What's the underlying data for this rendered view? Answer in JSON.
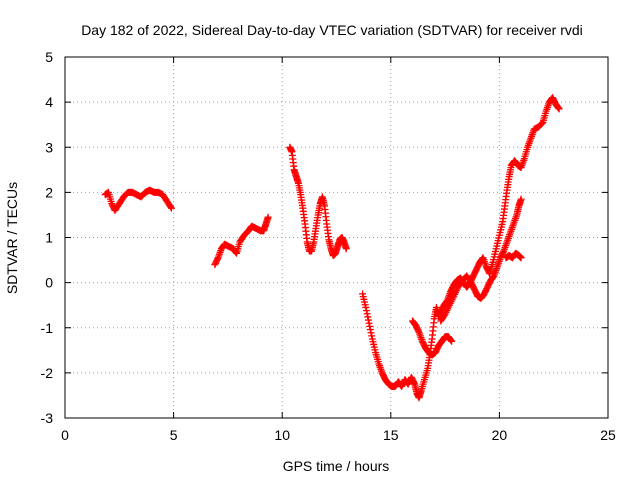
{
  "chart_data": {
    "type": "scatter",
    "title": "Day 182 of 2022, Sidereal Day-to-day VTEC variation (SDTVAR) for receiver rvdi",
    "xlabel": "GPS time / hours",
    "ylabel": "SDTVAR / TECUs",
    "xlim": [
      0,
      25
    ],
    "ylim": [
      -3,
      5
    ],
    "x_ticks": [
      "0",
      "5",
      "10",
      "15",
      "20",
      "25"
    ],
    "y_ticks": [
      "-3",
      "-2",
      "-1",
      "0",
      "1",
      "2",
      "3",
      "4",
      "5"
    ],
    "grid": true,
    "marker": "+",
    "color": "#ff0000",
    "series": [
      {
        "points": [
          [
            1.85,
            1.95
          ],
          [
            2.0,
            2.0
          ],
          [
            2.15,
            1.75
          ],
          [
            2.3,
            1.6
          ],
          [
            2.5,
            1.75
          ],
          [
            2.7,
            1.9
          ],
          [
            2.9,
            2.0
          ],
          [
            3.1,
            2.0
          ],
          [
            3.3,
            1.95
          ],
          [
            3.5,
            1.9
          ],
          [
            3.7,
            2.0
          ],
          [
            3.9,
            2.05
          ],
          [
            4.1,
            2.0
          ],
          [
            4.3,
            2.0
          ],
          [
            4.5,
            1.95
          ],
          [
            4.7,
            1.8
          ],
          [
            4.9,
            1.65
          ]
        ]
      },
      {
        "points": [
          [
            6.9,
            0.4
          ],
          [
            7.05,
            0.55
          ],
          [
            7.2,
            0.75
          ],
          [
            7.35,
            0.85
          ],
          [
            7.55,
            0.8
          ],
          [
            7.75,
            0.75
          ],
          [
            7.9,
            0.65
          ],
          [
            8.05,
            0.9
          ],
          [
            8.25,
            1.05
          ],
          [
            8.45,
            1.15
          ],
          [
            8.6,
            1.25
          ],
          [
            8.8,
            1.2
          ],
          [
            9.0,
            1.15
          ],
          [
            9.15,
            1.15
          ],
          [
            9.25,
            1.3
          ],
          [
            9.35,
            1.45
          ]
        ]
      },
      {
        "points": [
          [
            10.35,
            3.0
          ],
          [
            10.45,
            2.9
          ],
          [
            10.55,
            2.5
          ],
          [
            10.65,
            2.35
          ],
          [
            10.75,
            2.2
          ],
          [
            10.85,
            1.95
          ],
          [
            10.95,
            1.65
          ],
          [
            11.05,
            1.3
          ],
          [
            11.15,
            0.9
          ],
          [
            11.25,
            0.7
          ],
          [
            11.35,
            0.7
          ],
          [
            11.45,
            0.9
          ],
          [
            11.55,
            1.2
          ],
          [
            11.65,
            1.5
          ],
          [
            11.75,
            1.75
          ],
          [
            11.85,
            1.9
          ],
          [
            11.95,
            1.7
          ],
          [
            12.05,
            1.3
          ],
          [
            12.15,
            0.95
          ],
          [
            12.25,
            0.75
          ],
          [
            12.35,
            0.6
          ],
          [
            12.45,
            0.65
          ],
          [
            12.55,
            0.8
          ],
          [
            12.65,
            0.95
          ],
          [
            12.75,
            1.0
          ],
          [
            12.85,
            0.9
          ],
          [
            12.95,
            0.75
          ]
        ]
      },
      {
        "points": [
          [
            13.7,
            -0.25
          ],
          [
            13.85,
            -0.55
          ],
          [
            14.0,
            -0.9
          ],
          [
            14.15,
            -1.25
          ],
          [
            14.3,
            -1.55
          ],
          [
            14.45,
            -1.8
          ],
          [
            14.6,
            -2.0
          ],
          [
            14.75,
            -2.15
          ],
          [
            14.9,
            -2.25
          ],
          [
            15.05,
            -2.3
          ],
          [
            15.2,
            -2.3
          ],
          [
            15.35,
            -2.2
          ],
          [
            15.5,
            -2.3
          ],
          [
            15.65,
            -2.15
          ],
          [
            15.8,
            -2.25
          ],
          [
            15.95,
            -2.1
          ],
          [
            16.1,
            -2.25
          ],
          [
            16.2,
            -2.45
          ],
          [
            16.3,
            -2.55
          ],
          [
            16.4,
            -2.4
          ],
          [
            16.55,
            -2.15
          ],
          [
            16.7,
            -1.9
          ],
          [
            16.8,
            -1.6
          ],
          [
            16.9,
            -1.25
          ],
          [
            17.0,
            -0.8
          ],
          [
            17.1,
            -0.55
          ],
          [
            17.2,
            -0.75
          ],
          [
            17.3,
            -0.65
          ],
          [
            17.45,
            -0.5
          ],
          [
            17.6,
            -0.4
          ],
          [
            17.75,
            -0.2
          ],
          [
            17.9,
            -0.05
          ],
          [
            18.05,
            0.05
          ],
          [
            18.2,
            0.1
          ],
          [
            18.35,
            0.0
          ],
          [
            18.5,
            -0.1
          ],
          [
            18.65,
            0.0
          ],
          [
            18.8,
            0.15
          ],
          [
            18.95,
            0.3
          ],
          [
            19.1,
            0.45
          ],
          [
            19.25,
            0.55
          ],
          [
            19.4,
            0.35
          ],
          [
            19.55,
            0.2
          ],
          [
            19.7,
            0.45
          ],
          [
            19.85,
            0.75
          ],
          [
            20.0,
            1.05
          ],
          [
            20.15,
            1.35
          ],
          [
            20.25,
            1.7
          ],
          [
            20.35,
            2.05
          ],
          [
            20.45,
            2.35
          ],
          [
            20.55,
            2.6
          ],
          [
            20.7,
            2.7
          ],
          [
            20.85,
            2.6
          ],
          [
            21.0,
            2.55
          ],
          [
            21.15,
            2.75
          ],
          [
            21.3,
            3.0
          ],
          [
            21.45,
            3.2
          ],
          [
            21.6,
            3.4
          ],
          [
            21.8,
            3.45
          ],
          [
            22.0,
            3.55
          ],
          [
            22.15,
            3.8
          ],
          [
            22.3,
            4.0
          ],
          [
            22.45,
            4.1
          ],
          [
            22.6,
            3.95
          ],
          [
            22.75,
            3.85
          ]
        ]
      },
      {
        "points": [
          [
            16.0,
            -0.85
          ],
          [
            16.15,
            -0.95
          ],
          [
            16.3,
            -1.1
          ],
          [
            16.45,
            -1.3
          ],
          [
            16.6,
            -1.45
          ],
          [
            16.75,
            -1.55
          ],
          [
            16.9,
            -1.6
          ],
          [
            17.05,
            -1.55
          ],
          [
            17.2,
            -1.4
          ],
          [
            17.35,
            -1.3
          ],
          [
            17.5,
            -1.2
          ],
          [
            17.65,
            -1.2
          ],
          [
            17.8,
            -1.3
          ]
        ]
      },
      {
        "points": [
          [
            17.3,
            -0.85
          ],
          [
            17.5,
            -0.7
          ],
          [
            17.7,
            -0.5
          ],
          [
            17.9,
            -0.3
          ],
          [
            18.1,
            -0.1
          ],
          [
            18.3,
            0.05
          ],
          [
            18.5,
            0.15
          ],
          [
            18.7,
            0.0
          ],
          [
            18.85,
            -0.15
          ],
          [
            19.0,
            -0.3
          ],
          [
            19.15,
            -0.35
          ],
          [
            19.3,
            -0.25
          ],
          [
            19.45,
            -0.1
          ],
          [
            19.6,
            0.05
          ],
          [
            19.75,
            0.15
          ],
          [
            19.9,
            0.35
          ],
          [
            20.05,
            0.55
          ],
          [
            20.2,
            0.7
          ],
          [
            20.35,
            0.9
          ],
          [
            20.5,
            1.1
          ],
          [
            20.65,
            1.3
          ],
          [
            20.8,
            1.5
          ],
          [
            20.9,
            1.7
          ],
          [
            21.0,
            1.85
          ]
        ]
      },
      {
        "points": [
          [
            20.3,
            0.55
          ],
          [
            20.45,
            0.6
          ],
          [
            20.6,
            0.55
          ],
          [
            20.75,
            0.65
          ],
          [
            20.9,
            0.6
          ],
          [
            21.0,
            0.55
          ]
        ]
      }
    ]
  }
}
